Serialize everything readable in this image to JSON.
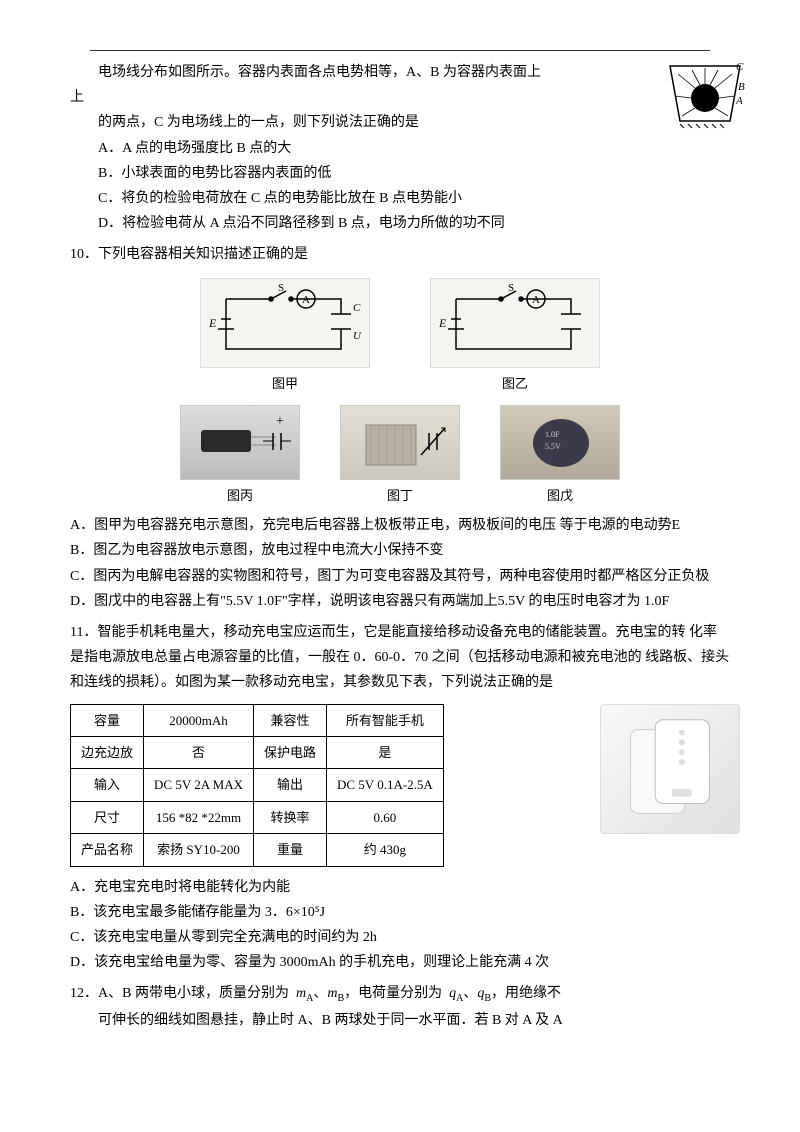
{
  "q9": {
    "intro1": "电场线分布如图所示。容器内表面各点电势相等，A、B 为容器内表面上",
    "intro2": "的两点，C 为电场线上的一点，则下列说法正确的是",
    "optA": "A．A 点的电场强度比 B 点的大",
    "optB": "B．小球表面的电势比容器内表面的低",
    "optC": "C．将负的检验电荷放在 C 点的电势能比放在 B 点电势能小",
    "optD": "D．将检验电荷从 A 点沿不同路径移到 B 点，电场力所做的功不同",
    "fig_labels": {
      "A": "A",
      "B": "B",
      "C": "C"
    }
  },
  "q10": {
    "stem": "10．下列电容器相关知识描述正确的是",
    "circuit1_label": "图甲",
    "circuit2_label": "图乙",
    "photo1_label": "图丙",
    "photo2_label": "图丁",
    "photo3_label": "图戊",
    "optA": "A．图甲为电容器充电示意图，充完电后电容器上极板带正电，两极板间的电压 等于电源的电动势E",
    "optB": "B．图乙为电容器放电示意图，放电过程中电流大小保持不变",
    "optC": "C．图丙为电解电容器的实物图和符号，图丁为可变电容器及其符号，两种电容使用时都严格区分正负极",
    "optD": "D．图戊中的电容器上有\"5.5V  1.0F\"字样，说明该电容器只有两端加上5.5V 的电压时电容才为 1.0F",
    "sym": {
      "E": "E",
      "S": "S",
      "A": "A",
      "C": "C",
      "U": "U"
    }
  },
  "q11": {
    "stem1": "11．智能手机耗电量大，移动充电宝应运而生，它是能直接给移动设备充电的储能装置。充电宝的转 化率是指电源放电总量占电源容量的比值，一般在 0．60-0．70 之间（包括移动电源和被充电池的 线路板、接头和连线的损耗）。如图为某一款移动充电宝，其参数见下表，下列说法正确的是",
    "table": {
      "rows": [
        [
          "容量",
          "20000mAh",
          "兼容性",
          "所有智能手机"
        ],
        [
          "边充边放",
          "否",
          "保护电路",
          "是"
        ],
        [
          "输入",
          "DC 5V 2A MAX",
          "输出",
          "DC 5V 0.1A-2.5A"
        ],
        [
          "尺寸",
          "156 *82 *22mm",
          "转换率",
          "0.60"
        ],
        [
          "产品名称",
          "索扬 SY10-200",
          "重量",
          "约 430g"
        ]
      ]
    },
    "optA": "A．充电宝充电时将电能转化为内能",
    "optB": "B．该充电宝最多能储存能量为 3．6×10⁵J",
    "optC": "C．该充电宝电量从零到完全充满电的时间约为 2h",
    "optD": "D．该充电宝给电量为零、容量为 3000mAh 的手机充电，则理论上能充满 4 次"
  },
  "q12": {
    "stem1": "12．A、B 两带电小球，质量分别为  mA、mB，电荷量分别为  qA、qB，用绝缘不",
    "stem2": "可伸长的细线如图悬挂，静止时  A、B 两球处于同一水平面．若  B 对 A 及 A"
  },
  "colors": {
    "text": "#000000",
    "bg": "#ffffff",
    "circuit_bg": "#f5f5f0",
    "photo_bg": "#e8e4dc",
    "border": "#cccccc"
  }
}
